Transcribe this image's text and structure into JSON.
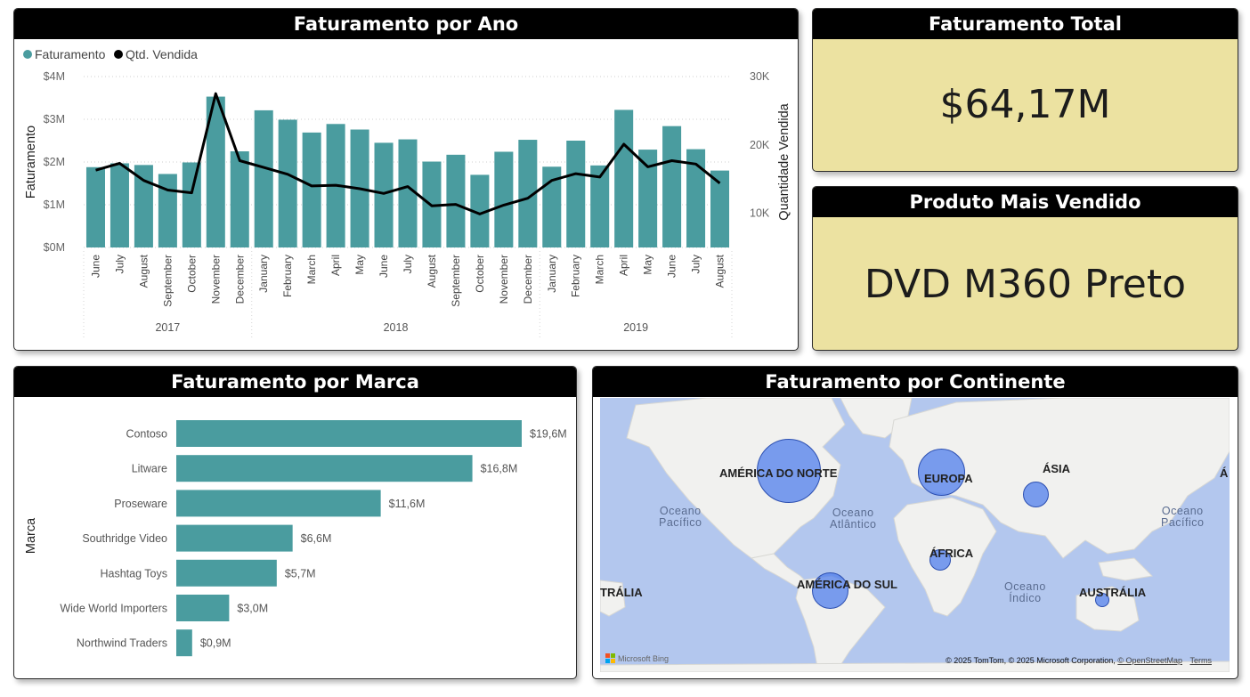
{
  "cards": {
    "revenue_by_year": {
      "title": "Faturamento por Ano"
    },
    "total_revenue": {
      "title": "Faturamento Total",
      "value": "$64,17M"
    },
    "top_product": {
      "title": "Produto Mais Vendido",
      "value": "DVD M360 Preto"
    },
    "revenue_by_brand": {
      "title": "Faturamento por Marca"
    },
    "revenue_by_continent": {
      "title": "Faturamento por Continente"
    }
  },
  "colors": {
    "bar": "#4a9c9f",
    "line": "#000000",
    "kpi_bg": "#ece2a1",
    "header_bg": "#000000",
    "map_water": "#b3c7ee",
    "map_land": "#f1f1ef",
    "bubble": "#4a7aeb"
  },
  "chart_data": [
    {
      "type": "bar+line",
      "legend": [
        "Faturamento",
        "Qtd. Vendida"
      ],
      "legend_position": "top-left",
      "ylabel": "Faturamento",
      "y2label": "Quantidade Vendida",
      "ylim": [
        0,
        4000000
      ],
      "y2lim": [
        5000,
        30000
      ],
      "y_ticks": [
        "$0M",
        "$1M",
        "$2M",
        "$3M",
        "$4M"
      ],
      "y2_ticks": [
        "10K",
        "20K",
        "30K"
      ],
      "grid": true,
      "categories": [
        "June",
        "July",
        "August",
        "September",
        "October",
        "November",
        "December",
        "January",
        "February",
        "March",
        "April",
        "May",
        "June",
        "July",
        "August",
        "September",
        "October",
        "November",
        "December",
        "January",
        "February",
        "March",
        "April",
        "May",
        "June",
        "July",
        "August"
      ],
      "years": [
        {
          "label": "2017",
          "count": 7
        },
        {
          "label": "2018",
          "count": 12
        },
        {
          "label": "2019",
          "count": 8
        }
      ],
      "series": [
        {
          "name": "Faturamento",
          "type": "bar",
          "values": [
            1880000,
            1970000,
            1930000,
            1720000,
            1990000,
            3530000,
            2250000,
            3210000,
            2990000,
            2690000,
            2890000,
            2760000,
            2450000,
            2530000,
            2010000,
            2170000,
            1700000,
            2240000,
            2520000,
            1890000,
            2500000,
            1920000,
            3220000,
            2290000,
            2840000,
            2300000,
            1800000
          ]
        },
        {
          "name": "Qtd. Vendida",
          "type": "line",
          "values": [
            16300,
            17300,
            14800,
            13400,
            13000,
            27500,
            17700,
            16700,
            15700,
            14000,
            14100,
            13600,
            12900,
            13900,
            11100,
            11300,
            9900,
            11200,
            12200,
            14800,
            15800,
            15300,
            20100,
            16800,
            17700,
            17200,
            14400
          ]
        }
      ]
    },
    {
      "type": "bar",
      "orientation": "horizontal",
      "ylabel": "Marca",
      "categories": [
        "Contoso",
        "Litware",
        "Proseware",
        "Southridge Video",
        "Hashtag Toys",
        "Wide World Importers",
        "Northwind Traders"
      ],
      "values": [
        19.6,
        16.8,
        11.6,
        6.6,
        5.7,
        3.0,
        0.9
      ],
      "data_labels": [
        "$19,6M",
        "$16,8M",
        "$11,6M",
        "$6,6M",
        "$5,7M",
        "$3,0M",
        "$0,9M"
      ]
    }
  ],
  "map": {
    "labels": [
      {
        "name": "north-america",
        "text": "AMÉRICA DO NORTE"
      },
      {
        "name": "europe",
        "text": "EUROPA"
      },
      {
        "name": "asia",
        "text": "ÁSIA"
      },
      {
        "name": "africa",
        "text": "ÁFRICA"
      },
      {
        "name": "south-america",
        "text": "AMÉRICA DO SUL"
      },
      {
        "name": "australia",
        "text": "AUSTRÁLIA"
      },
      {
        "name": "australia-edge",
        "text": "TRÁLIA"
      },
      {
        "name": "asia-edge",
        "text": "Á"
      }
    ],
    "oceans": [
      {
        "name": "pacific-west",
        "line1": "Oceano",
        "line2": "Pacífico"
      },
      {
        "name": "atlantic",
        "line1": "Oceano",
        "line2": "Atlântico"
      },
      {
        "name": "indian",
        "line1": "Oceano",
        "line2": "Índico"
      },
      {
        "name": "pacific-east",
        "line1": "Oceano",
        "line2": "Pacífico"
      }
    ],
    "bing_logo": "Microsoft Bing",
    "attribution": "© 2025 TomTom, © 2025 Microsoft Corporation,",
    "osm_link": "© OpenStreetMap",
    "terms_link": "Terms"
  }
}
